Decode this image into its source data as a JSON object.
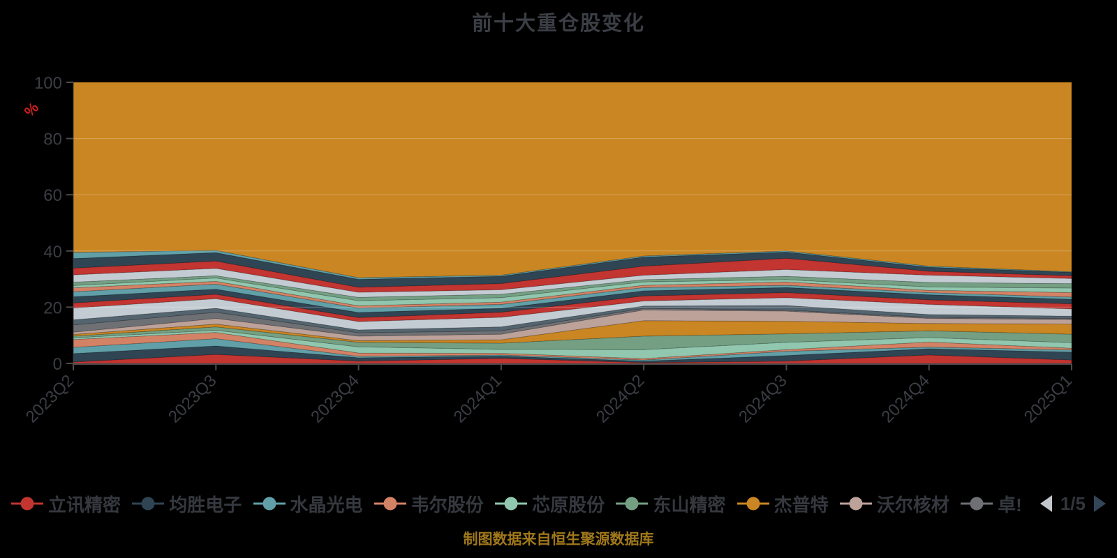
{
  "title": "前十大重仓股变化",
  "footer": "制图数据来自恒生聚源数据库",
  "axis": {
    "unit_label": "%",
    "unit_color": "#cf1f1f",
    "y_ticks": [
      0,
      20,
      40,
      60,
      80,
      100
    ],
    "label_color": "#3b3e44",
    "line_color": "#4c4c4c",
    "grid_color": "rgba(255,255,255,0.25)"
  },
  "legend": {
    "items": [
      {
        "label": "立讯精密",
        "color": "#c23531"
      },
      {
        "label": "均胜电子",
        "color": "#2f4554"
      },
      {
        "label": "水晶光电",
        "color": "#61a0a8"
      },
      {
        "label": "韦尔股份",
        "color": "#d48265"
      },
      {
        "label": "芯原股份",
        "color": "#91c7ae"
      },
      {
        "label": "东山精密",
        "color": "#749f83"
      },
      {
        "label": "杰普特",
        "color": "#ca8622"
      },
      {
        "label": "沃尔核材",
        "color": "#bda29a"
      },
      {
        "label": "卓!",
        "color": "#6e7074"
      }
    ],
    "pager": {
      "text": "1/5",
      "prev_color": "#c3c7cb",
      "next_color": "#32465a"
    }
  },
  "chart_data": {
    "type": "area",
    "stacked": true,
    "title": "前十大重仓股变化",
    "ylabel": "%",
    "ylim": [
      0,
      100
    ],
    "grid": true,
    "legend_position": "bottom",
    "background": "#000000",
    "categories": [
      "2023Q2",
      "2023Q3",
      "2023Q4",
      "2024Q1",
      "2024Q2",
      "2024Q3",
      "2024Q4",
      "2025Q1"
    ],
    "series": [
      {
        "name": "立讯精密",
        "color": "#c23531",
        "values": [
          0.5,
          3.2,
          0.8,
          1.8,
          0.3,
          0.8,
          3.0,
          1.2
        ]
      },
      {
        "name": "均胜电子",
        "color": "#2f4554",
        "values": [
          3.0,
          3.0,
          1.2,
          0.8,
          0.5,
          2.0,
          2.2,
          2.8
        ]
      },
      {
        "name": "水晶光电",
        "color": "#61a0a8",
        "values": [
          2.2,
          2.6,
          0.5,
          0.4,
          0.4,
          1.5,
          0.6,
          0.8
        ]
      },
      {
        "name": "韦尔股份",
        "color": "#d48265",
        "values": [
          2.8,
          2.2,
          1.2,
          0.6,
          0.5,
          0.6,
          1.8,
          0.6
        ]
      },
      {
        "name": "芯原股份",
        "color": "#91c7ae",
        "values": [
          0.6,
          0.8,
          2.2,
          1.4,
          3.2,
          2.6,
          1.6,
          2.0
        ]
      },
      {
        "name": "东山精密",
        "color": "#749f83",
        "values": [
          0.6,
          1.2,
          1.6,
          2.2,
          4.8,
          3.0,
          2.4,
          3.0
        ]
      },
      {
        "name": "杰普特",
        "color": "#ca8622",
        "values": [
          0.6,
          1.0,
          0.6,
          1.2,
          5.5,
          4.5,
          2.6,
          3.6
        ]
      },
      {
        "name": "沃尔核材",
        "color": "#bda29a",
        "values": [
          0.8,
          2.0,
          1.6,
          2.0,
          3.8,
          3.6,
          1.8,
          1.6
        ]
      },
      {
        "name": "卓!",
        "color": "#6e7074",
        "values": [
          2.6,
          2.2,
          1.2,
          1.2,
          0.6,
          0.4,
          0.4,
          0.4
        ]
      },
      {
        "name": "",
        "color": "#546570",
        "values": [
          1.8,
          1.4,
          1.0,
          1.4,
          0.8,
          1.6,
          1.0,
          0.8
        ]
      },
      {
        "name": "",
        "color": "#c4ccd3",
        "values": [
          4.2,
          3.4,
          3.0,
          3.4,
          1.8,
          2.8,
          3.6,
          2.6
        ]
      },
      {
        "name": "",
        "color": "#c23531",
        "values": [
          1.8,
          1.6,
          1.4,
          1.8,
          1.8,
          1.8,
          1.6,
          1.8
        ]
      },
      {
        "name": "",
        "color": "#2f4554",
        "values": [
          2.2,
          1.8,
          1.8,
          1.4,
          1.8,
          1.8,
          1.8,
          1.6
        ]
      },
      {
        "name": "",
        "color": "#61a0a8",
        "values": [
          1.8,
          1.8,
          1.6,
          1.4,
          1.2,
          0.8,
          0.8,
          0.8
        ]
      },
      {
        "name": "",
        "color": "#d48265",
        "values": [
          1.4,
          1.0,
          0.8,
          0.8,
          0.8,
          1.2,
          0.8,
          1.6
        ]
      },
      {
        "name": "",
        "color": "#91c7ae",
        "values": [
          0.8,
          1.2,
          1.8,
          1.6,
          1.2,
          0.8,
          1.2,
          1.6
        ]
      },
      {
        "name": "",
        "color": "#749f83",
        "values": [
          1.2,
          0.8,
          1.2,
          1.2,
          0.8,
          1.2,
          1.6,
          1.6
        ]
      },
      {
        "name": "",
        "color": "#c4ccd3",
        "values": [
          2.6,
          2.6,
          1.8,
          1.6,
          1.6,
          2.4,
          2.6,
          1.8
        ]
      },
      {
        "name": "",
        "color": "#c23531",
        "values": [
          2.4,
          2.6,
          1.8,
          2.2,
          3.2,
          4.0,
          1.4,
          1.0
        ]
      },
      {
        "name": "",
        "color": "#2f4554",
        "values": [
          3.4,
          3.0,
          2.8,
          2.6,
          3.2,
          2.2,
          1.4,
          1.2
        ]
      },
      {
        "name": "",
        "color": "#61a0a8",
        "values": [
          2.2,
          0.8,
          0.6,
          0.4,
          0.4,
          0.4,
          0.4,
          0.2
        ]
      },
      {
        "name": "",
        "color": "#ca8622",
        "values": [
          60.5,
          59.8,
          69.5,
          68.6,
          61.8,
          60.0,
          65.4,
          67.4
        ]
      }
    ]
  }
}
